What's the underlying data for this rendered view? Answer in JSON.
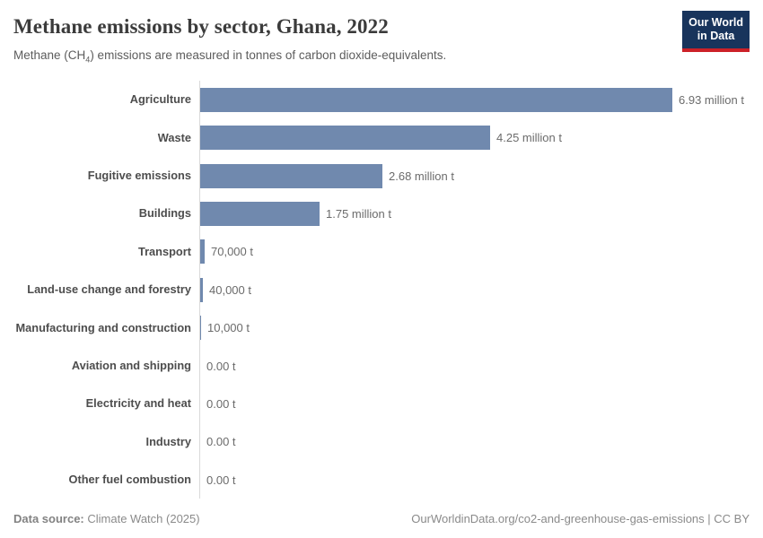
{
  "accent_colors": {
    "bar": "#7089ae",
    "axis": "#d9d9d9",
    "logo_background": "#18345c",
    "logo_underline": "#cc2128"
  },
  "header": {
    "title": "Methane emissions by sector, Ghana, 2022",
    "subtitle_prefix": "Methane (CH",
    "subtitle_sub": "4",
    "subtitle_suffix": ") emissions are measured in tonnes of carbon dioxide-equivalents.",
    "logo": {
      "line1": "Our World",
      "line2": "in Data"
    }
  },
  "chart_data": {
    "type": "bar",
    "orientation": "horizontal",
    "title": "Methane emissions by sector, Ghana, 2022",
    "subtitle": "Methane (CH4) emissions are measured in tonnes of carbon dioxide-equivalents.",
    "unit": "tonnes of carbon dioxide-equivalents",
    "xlim": [
      0,
      6930000
    ],
    "grid": false,
    "legend": "none",
    "categories": [
      "Agriculture",
      "Waste",
      "Fugitive emissions",
      "Buildings",
      "Transport",
      "Land-use change and forestry",
      "Manufacturing and construction",
      "Aviation and shipping",
      "Electricity and heat",
      "Industry",
      "Other fuel combustion"
    ],
    "values": [
      6930000,
      4250000,
      2680000,
      1750000,
      70000,
      40000,
      10000,
      0,
      0,
      0,
      0
    ],
    "value_labels": [
      "6.93 million t",
      "4.25 million t",
      "2.68 million t",
      "1.75 million t",
      "70,000 t",
      "40,000 t",
      "10,000 t",
      "0.00 t",
      "0.00 t",
      "0.00 t",
      "0.00 t"
    ]
  },
  "footer": {
    "source_label": "Data source:",
    "source_value": " Climate Watch (2025)",
    "attribution": "OurWorldinData.org/co2-and-greenhouse-gas-emissions | CC BY"
  }
}
